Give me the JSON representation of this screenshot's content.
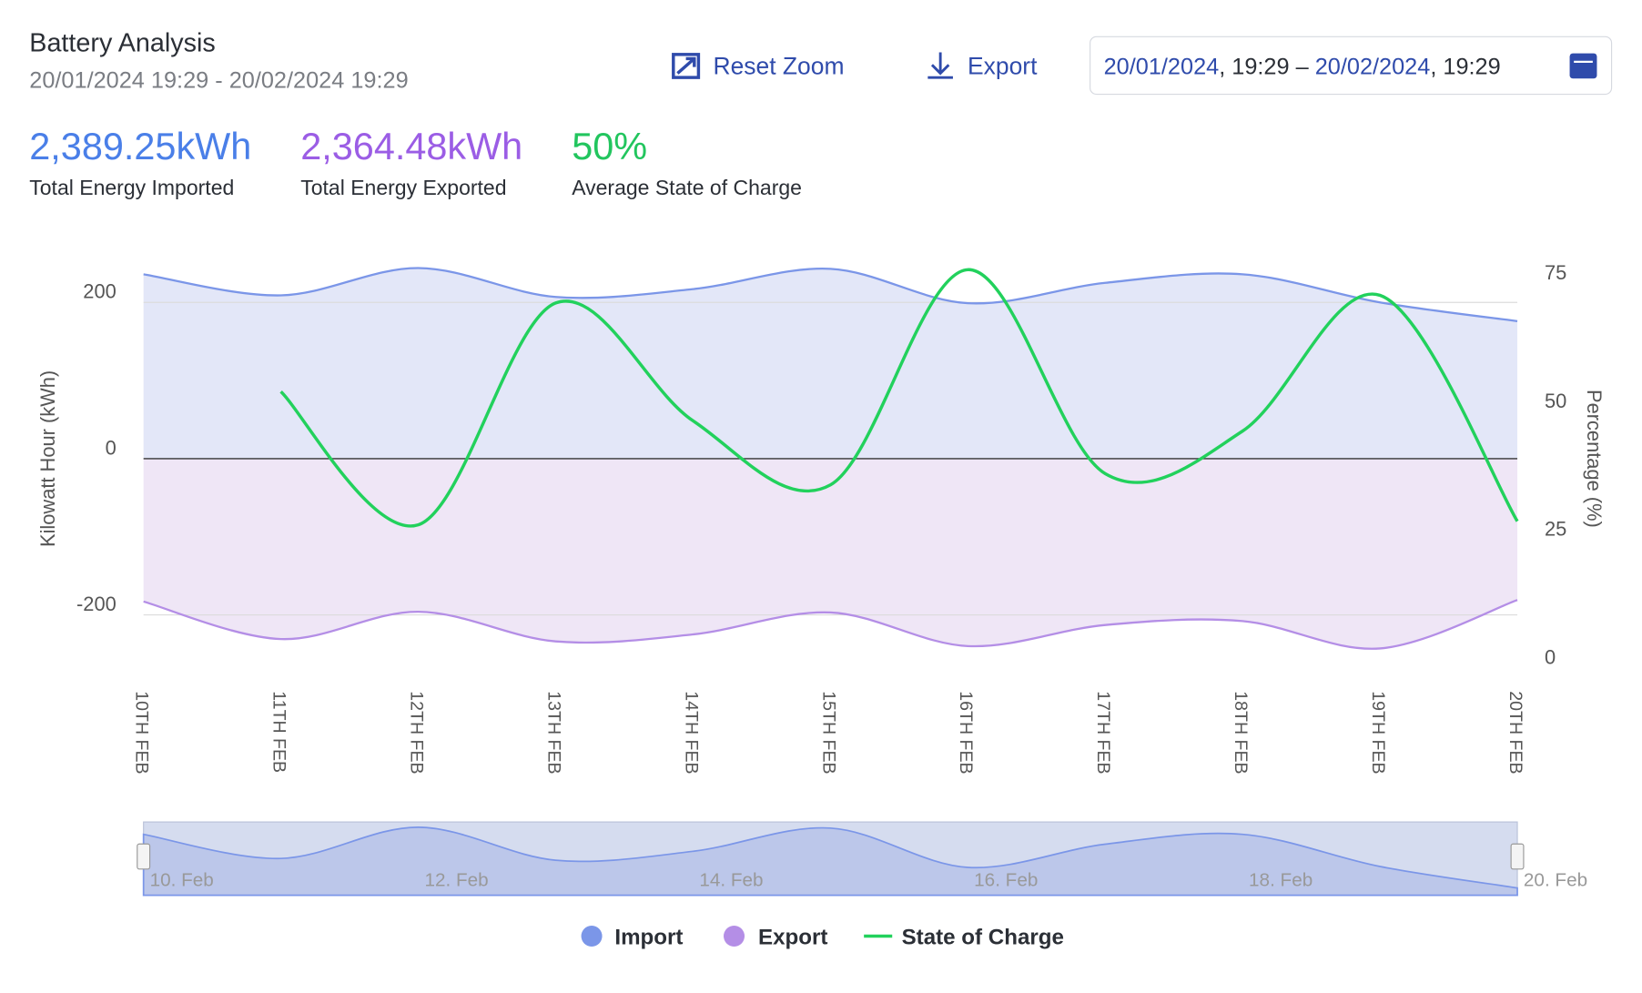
{
  "header": {
    "title": "Battery Analysis",
    "subtitle": "20/01/2024 19:29 - 20/02/2024 19:29",
    "reset_zoom": "Reset Zoom",
    "export": "Export",
    "date_range": {
      "start_date": "20/01/2024",
      "start_time": ", 19:29 – ",
      "end_date": "20/02/2024",
      "end_time": ", 19:29"
    }
  },
  "stats": [
    {
      "value": "2,389.25kWh",
      "label": "Total Energy Imported"
    },
    {
      "value": "2,364.48kWh",
      "label": "Total Energy Exported"
    },
    {
      "value": "50%",
      "label": "Average State of Charge"
    }
  ],
  "chart_data": {
    "type": "area-line",
    "ylabel": "Kilowatt Hour (kWh)",
    "y2label": "Percentage (%)",
    "categories": [
      "10TH FEB",
      "11TH FEB",
      "12TH FEB",
      "13TH FEB",
      "14TH FEB",
      "15TH FEB",
      "16TH FEB",
      "17TH FEB",
      "18TH FEB",
      "19TH FEB",
      "20TH FEB"
    ],
    "ylim": [
      -250,
      250
    ],
    "yticks": [
      -200,
      0,
      200
    ],
    "y2lim": [
      0,
      75
    ],
    "y2ticks": [
      0,
      25,
      50,
      75
    ],
    "legend": "bottom",
    "series": [
      {
        "name": "Import",
        "color": "#7b96e8",
        "fill": "#e3e7f8",
        "values": [
          236,
          209,
          244,
          207,
          217,
          243,
          199,
          225,
          236,
          200,
          176
        ]
      },
      {
        "name": "Export",
        "color": "#b48ee6",
        "fill": "#efe6f6",
        "values": [
          -183,
          -231,
          -196,
          -234,
          -225,
          -197,
          -240,
          -213,
          -208,
          -243,
          -181
        ]
      },
      {
        "name": "State of Charge",
        "color": "#22d15c",
        "axis": "y2",
        "values": [
          null,
          51.7,
          25.7,
          69,
          46,
          33.5,
          75.5,
          35.7,
          44,
          70.5,
          26.4
        ]
      }
    ],
    "navigator": {
      "labels": [
        "10. Feb",
        "12. Feb",
        "14. Feb",
        "16. Feb",
        "18. Feb",
        "20. Feb"
      ]
    }
  }
}
